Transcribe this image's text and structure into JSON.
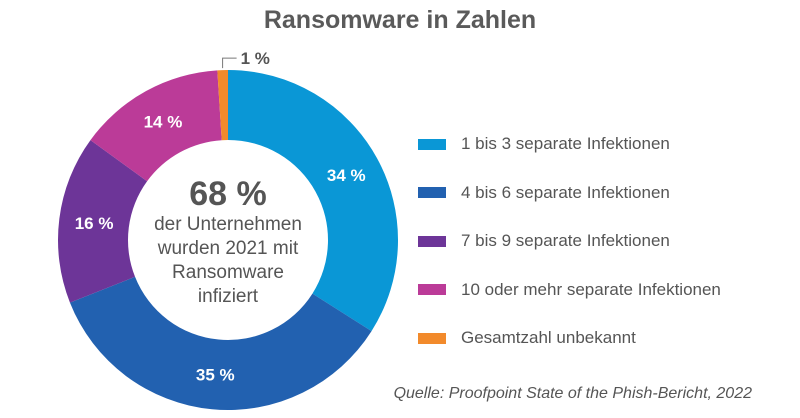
{
  "chart_data": {
    "type": "pie",
    "donut": true,
    "title": "Ransomware in Zahlen",
    "center_value": "68 %",
    "center_text": [
      "der Unternehmen",
      "wurden 2021 mit",
      "Ransomware",
      "infiziert"
    ],
    "slices": [
      {
        "name": "1 bis 3 separate Infektionen",
        "value": 34,
        "label": "34 %",
        "color": "#0a97d6"
      },
      {
        "name": "4 bis 6 separate Infektionen",
        "value": 35,
        "label": "35 %",
        "color": "#2261b0"
      },
      {
        "name": "7 bis 9 separate Infektionen",
        "value": 16,
        "label": "16 %",
        "color": "#6d3598"
      },
      {
        "name": "10 oder mehr separate Infektionen",
        "value": 14,
        "label": "14 %",
        "color": "#bb3b98"
      },
      {
        "name": "Gesamtzahl unbekannt",
        "value": 1,
        "label": "1 %",
        "color": "#f28a2b"
      }
    ],
    "legend_placement": "right",
    "source": "Quelle: Proofpoint State of the Phish-Bericht, 2022"
  }
}
